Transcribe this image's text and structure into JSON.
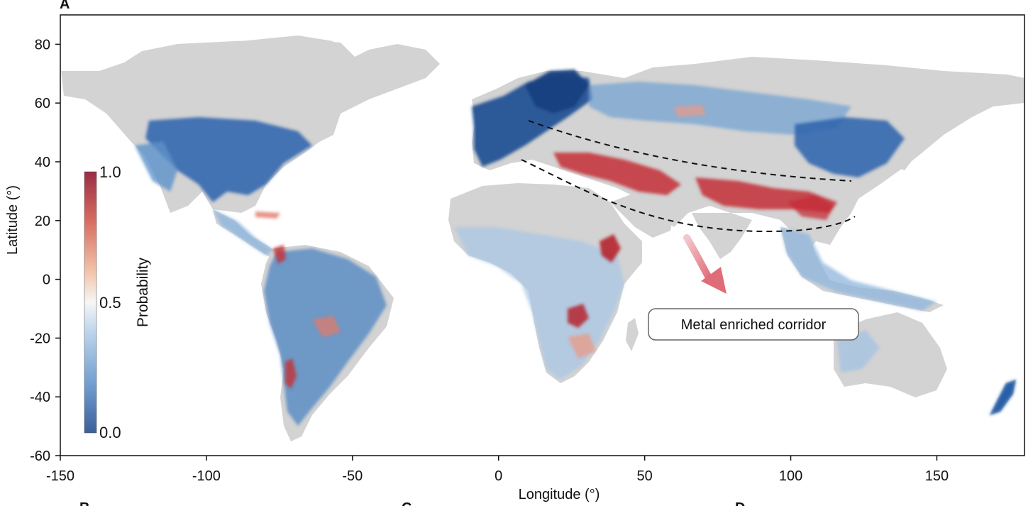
{
  "panel_labels": {
    "main": "A",
    "bottom_left": "B",
    "bottom_mid": "C",
    "bottom_right": "D"
  },
  "axes": {
    "xlabel": "Longitude (°)",
    "ylabel": "Latitude (°)",
    "xlim": [
      -150,
      180
    ],
    "ylim": [
      -60,
      90
    ],
    "xticks": [
      "-150",
      "-100",
      "-50",
      "0",
      "50",
      "100",
      "150"
    ],
    "xtick_values": [
      -150,
      -100,
      -50,
      0,
      50,
      100,
      150
    ],
    "yticks": [
      "80",
      "60",
      "40",
      "20",
      "0",
      "-20",
      "-40",
      "-60"
    ],
    "ytick_values": [
      80,
      60,
      40,
      20,
      0,
      -20,
      -40,
      -60
    ]
  },
  "colorbar": {
    "label": "Probability",
    "max_label": "1.0",
    "mid_label": "0.5",
    "min_label": "0.0",
    "colors": [
      "#3b5f9a",
      "#6f9ccf",
      "#b9d3ea",
      "#f6f6f6",
      "#f2c2a9",
      "#d46a5e",
      "#9a2d45"
    ]
  },
  "annotation": {
    "text": "Metal enriched corridor"
  },
  "colors": {
    "land": "#d3d3d3",
    "low": "#1f5ba7",
    "mid_low": "#7aa8d6",
    "light": "#c9ddee",
    "high": "#c42e36",
    "mid_high": "#e99a86",
    "arrow": "#e06c78"
  }
}
